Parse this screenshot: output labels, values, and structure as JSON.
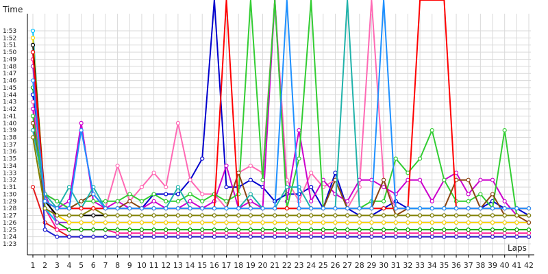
{
  "chart_data": {
    "type": "line",
    "title": "",
    "ylabel": "Time",
    "xlabel": "Laps",
    "x": [
      1,
      2,
      3,
      4,
      5,
      6,
      7,
      8,
      9,
      10,
      11,
      12,
      13,
      14,
      15,
      16,
      17,
      18,
      19,
      20,
      21,
      22,
      23,
      24,
      25,
      26,
      27,
      28,
      29,
      30,
      31,
      32,
      33,
      34,
      35,
      36,
      37,
      38,
      39,
      40,
      41,
      42
    ],
    "xlim": [
      1,
      42
    ],
    "ylim_seconds": [
      82,
      114
    ],
    "ytick_labels": [
      "1:23",
      "1:24",
      "1:25",
      "1:26",
      "1:27",
      "1:28",
      "1:29",
      "1:30",
      "1:31",
      "1:32",
      "1:33",
      "1:34",
      "1:35",
      "1:36",
      "1:37",
      "1:38",
      "1:39",
      "1:40",
      "1:41",
      "1:42",
      "1:43",
      "1:44",
      "1:45",
      "1:46",
      "1:47",
      "1:48",
      "1:49",
      "1:50",
      "1:51",
      "1:52",
      "1:53"
    ],
    "grid": true,
    "legend": "none",
    "series": [
      {
        "color": "#e41a1c",
        "values": [
          91,
          86,
          85,
          84,
          84,
          84,
          84,
          84,
          84,
          84,
          84,
          84,
          84,
          84,
          84,
          84,
          84,
          84,
          84,
          84,
          84,
          84,
          84,
          84,
          84,
          84,
          84,
          84,
          84,
          84,
          84,
          84,
          84,
          84,
          84,
          84,
          84,
          84,
          84,
          84,
          84,
          84
        ]
      },
      {
        "color": "#1f1fd0",
        "values": [
          110,
          85,
          84,
          84,
          84,
          84,
          84,
          84,
          84,
          84,
          84,
          84,
          84,
          84,
          84,
          84,
          84,
          84,
          84,
          84,
          84,
          84,
          84,
          84,
          84,
          84,
          84,
          84,
          84,
          84,
          84,
          84,
          84,
          84,
          84,
          84,
          84,
          84,
          84,
          84,
          84,
          84
        ]
      },
      {
        "color": "#ff1493",
        "values": [
          109,
          88,
          85,
          85,
          85,
          85,
          85,
          84.5,
          84.5,
          84.5,
          84.5,
          84.5,
          84.5,
          84.5,
          84.5,
          84.5,
          84.5,
          84.5,
          84.5,
          84.5,
          84.5,
          84.5,
          84.5,
          84.5,
          84.5,
          84.5,
          84.5,
          84.5,
          84.5,
          84.5,
          84.5,
          84.5,
          84.5,
          84.5,
          84.5,
          84.5,
          84.5,
          84.5,
          84.5,
          84.5,
          84.5,
          84.5
        ]
      },
      {
        "color": "#00aa00",
        "values": [
          105,
          88,
          86,
          85,
          85,
          85,
          85,
          85,
          85,
          85,
          85,
          85,
          85,
          85,
          85,
          85,
          85,
          85,
          85,
          85,
          85,
          85,
          85,
          85,
          85,
          85,
          85,
          85,
          85,
          85,
          85,
          85,
          85,
          85,
          85,
          85,
          85,
          85,
          85,
          85,
          85,
          85
        ]
      },
      {
        "color": "#00bfff",
        "values": [
          113,
          88,
          86,
          86,
          86,
          86,
          86,
          86,
          86,
          86,
          86,
          86,
          86,
          86,
          86,
          86,
          86,
          86,
          86,
          86,
          86,
          86,
          86,
          86,
          86,
          86,
          86,
          86,
          86,
          86,
          86,
          86,
          86,
          86,
          86,
          86,
          86,
          86,
          86,
          86,
          86,
          86
        ]
      },
      {
        "color": "#9932cc",
        "values": [
          108,
          90,
          86,
          86,
          86,
          86,
          86,
          86,
          86,
          86,
          86,
          86,
          86,
          86,
          86,
          86,
          86,
          86,
          86,
          86,
          86,
          86,
          86,
          86,
          86,
          86,
          86,
          86,
          86,
          86,
          86,
          86,
          86,
          86,
          86,
          86,
          86,
          86,
          86,
          86,
          86,
          86
        ]
      },
      {
        "color": "#ffd700",
        "values": [
          112,
          89,
          87,
          86,
          86,
          86,
          86,
          86,
          86,
          86,
          86,
          86,
          86,
          86,
          86,
          86,
          86,
          86,
          86,
          86,
          86,
          86,
          86,
          86,
          86,
          86,
          86,
          86,
          86,
          86,
          86,
          86,
          86,
          86,
          86,
          86,
          86,
          86,
          86,
          86,
          86,
          86
        ]
      },
      {
        "color": "#000000",
        "values": [
          111,
          89,
          87,
          87,
          87,
          87,
          87,
          87,
          87,
          87,
          87,
          87,
          87,
          87,
          87,
          87,
          87,
          87,
          87,
          87,
          87,
          87,
          87,
          87,
          87,
          87,
          87,
          87,
          87,
          87,
          87,
          87,
          87,
          87,
          87,
          87,
          87,
          87,
          87,
          87,
          87,
          87
        ]
      },
      {
        "color": "#0000cd",
        "values": [
          104,
          90,
          89,
          88,
          88,
          88,
          88,
          88,
          88,
          88,
          90,
          90,
          90,
          92,
          95,
          120,
          91,
          91,
          92,
          91,
          89,
          90,
          90,
          91,
          88,
          93,
          88,
          87,
          87,
          88,
          89,
          88,
          88,
          88,
          88,
          88,
          88,
          88,
          89,
          88,
          88,
          87
        ]
      },
      {
        "color": "#ff69b4",
        "values": [
          103,
          90,
          89,
          88,
          88,
          88,
          88,
          94,
          89,
          91,
          93,
          91,
          100,
          92,
          90,
          90,
          88,
          93,
          94,
          93,
          120,
          92,
          89,
          93,
          91,
          92,
          88,
          91,
          120,
          92,
          88,
          88,
          88,
          88,
          88,
          88,
          88,
          88,
          88,
          88,
          88,
          88
        ]
      },
      {
        "color": "#cc00cc",
        "values": [
          102,
          89,
          88,
          89,
          100,
          89,
          88,
          89,
          88,
          88,
          89,
          88,
          88,
          89,
          88,
          89,
          94,
          88,
          89,
          88,
          120,
          89,
          99,
          89,
          92,
          90,
          89,
          92,
          92,
          91,
          90,
          92,
          92,
          89,
          92,
          93,
          90,
          92,
          92,
          89,
          87,
          87
        ]
      },
      {
        "color": "#32cd32",
        "values": [
          101,
          90,
          89,
          88,
          89,
          89,
          89,
          89,
          90,
          89,
          90,
          89,
          89,
          90,
          89,
          90,
          89,
          90,
          120,
          92,
          120,
          88,
          95,
          120,
          88,
          92,
          88,
          88,
          89,
          89,
          95,
          93,
          95,
          99,
          92,
          89,
          89,
          90,
          88,
          99,
          87,
          87
        ]
      },
      {
        "color": "#8b4513",
        "values": [
          100,
          89,
          88,
          88,
          89,
          90,
          88,
          88,
          89,
          88,
          88,
          88,
          88,
          88,
          88,
          88,
          88,
          93,
          88,
          88,
          88,
          88,
          88,
          88,
          88,
          92,
          88,
          88,
          88,
          92,
          87,
          88,
          88,
          88,
          88,
          92,
          92,
          88,
          90,
          87,
          87,
          86
        ]
      },
      {
        "color": "#20b2aa",
        "values": [
          99,
          90,
          88,
          91,
          88,
          91,
          88,
          88,
          88,
          88,
          88,
          88,
          91,
          88,
          88,
          88,
          88,
          88,
          90,
          88,
          88,
          91,
          91,
          88,
          88,
          88,
          120,
          88,
          88,
          88,
          88,
          88,
          88,
          88,
          88,
          88,
          88,
          88,
          88,
          88,
          88,
          88
        ]
      },
      {
        "color": "#808000",
        "values": [
          98,
          88,
          87,
          87,
          87,
          88,
          87,
          87,
          87,
          87,
          87,
          87,
          87,
          87,
          87,
          87,
          87,
          87,
          87,
          87,
          87,
          87,
          87,
          87,
          87,
          87,
          87,
          87,
          87,
          87,
          87,
          87,
          87,
          87,
          87,
          87,
          87,
          87,
          87,
          87,
          87,
          87
        ]
      },
      {
        "color": "#ff0000",
        "values": [
          110,
          89,
          88,
          88,
          88,
          88,
          88,
          88,
          88,
          88,
          88,
          88,
          88,
          88,
          88,
          88,
          120,
          88,
          88,
          88,
          88,
          88,
          88,
          88,
          88,
          88,
          88,
          88,
          88,
          88,
          88,
          88,
          120,
          120,
          120,
          88,
          88,
          88,
          88,
          88,
          88,
          88
        ]
      },
      {
        "color": "#1e90ff",
        "values": [
          106,
          89,
          88,
          88,
          99,
          90,
          88,
          88,
          88,
          88,
          88,
          88,
          88,
          88,
          88,
          88,
          88,
          88,
          88,
          88,
          88,
          120,
          88,
          88,
          88,
          88,
          88,
          88,
          88,
          120,
          88,
          88,
          88,
          88,
          88,
          88,
          88,
          88,
          88,
          88,
          88,
          88
        ]
      }
    ]
  }
}
